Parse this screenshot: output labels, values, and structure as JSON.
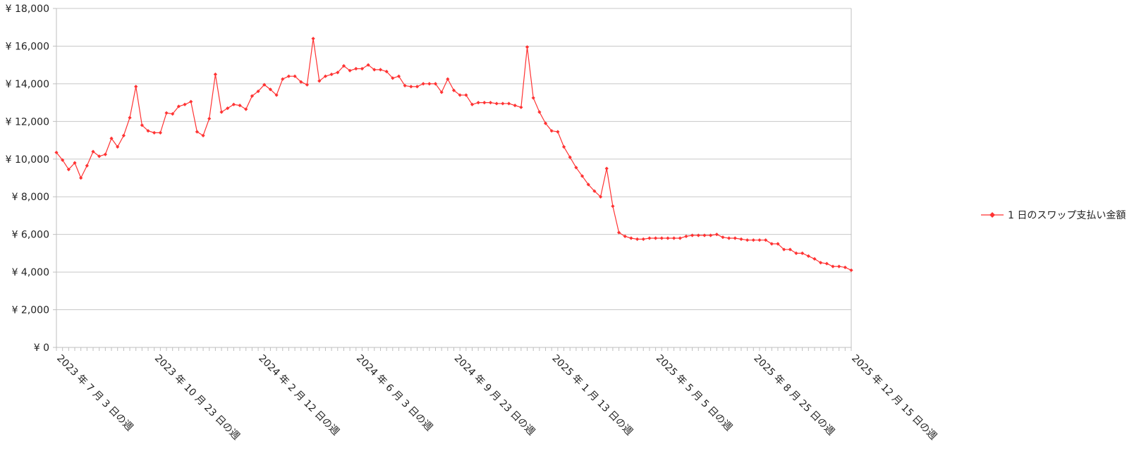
{
  "chart_data": {
    "type": "line",
    "title": "",
    "xlabel": "",
    "ylabel": "",
    "ylim": [
      0,
      18000
    ],
    "yticks": [
      0,
      2000,
      4000,
      6000,
      8000,
      10000,
      12000,
      14000,
      16000,
      18000
    ],
    "ytick_labels": [
      "¥ 0",
      "¥ 2,000",
      "¥ 4,000",
      "¥ 6,000",
      "¥ 8,000",
      "¥ 10,000",
      "¥ 12,000",
      "¥ 14,000",
      "¥ 16,000",
      "¥ 18,000"
    ],
    "x_start": "2023-07-03",
    "x_end": "2025-12-15",
    "xtick_labels": [
      "2023 年 7 月 3 日の週",
      "2023 年 10 月 23 日の週",
      "2024 年 2 月 12 日の週",
      "2024 年 6 月 3 日の週",
      "2024 年 9 月 23 日の週",
      "2025 年 1 月 13 日の週",
      "2025 年 5 月 5 日の週",
      "2025 年 8 月 25 日の週",
      "2025 年 12 月 15 日の週"
    ],
    "grid": true,
    "legend_position": "right",
    "series": [
      {
        "name": "1 日のスワップ支払い金額",
        "color": "#ff3333",
        "marker": "diamond",
        "values": [
          10350,
          9950,
          9450,
          9800,
          9000,
          9650,
          10400,
          10150,
          10250,
          11100,
          10650,
          11250,
          12200,
          13850,
          11800,
          11500,
          11400,
          11400,
          12450,
          12400,
          12800,
          12900,
          13050,
          11450,
          11250,
          12150,
          14500,
          12500,
          12700,
          12900,
          12850,
          12650,
          13350,
          13600,
          13950,
          13700,
          13400,
          14250,
          14400,
          14400,
          14100,
          13950,
          16400,
          14150,
          14400,
          14500,
          14600,
          14950,
          14700,
          14800,
          14800,
          15000,
          14750,
          14750,
          14650,
          14300,
          14400,
          13900,
          13850,
          13850,
          14000,
          14000,
          14000,
          13550,
          14250,
          13650,
          13400,
          13400,
          12900,
          13000,
          13000,
          13000,
          12950,
          12950,
          12950,
          12850,
          12750,
          15950,
          13250,
          12500,
          11900,
          11500,
          11450,
          10650,
          10100,
          9550,
          9100,
          8650,
          8300,
          8000,
          9500,
          7500,
          6100,
          5900,
          5800,
          5750,
          5750,
          5800,
          5800,
          5800,
          5800,
          5800,
          5800,
          5900,
          5950,
          5950,
          5950,
          5950,
          6000,
          5850,
          5800,
          5800,
          5750,
          5700,
          5700,
          5700,
          5700,
          5500,
          5500,
          5200,
          5200,
          5000,
          5000,
          4850,
          4700,
          4500,
          4450,
          4300,
          4300,
          4250,
          4100
        ]
      }
    ]
  }
}
